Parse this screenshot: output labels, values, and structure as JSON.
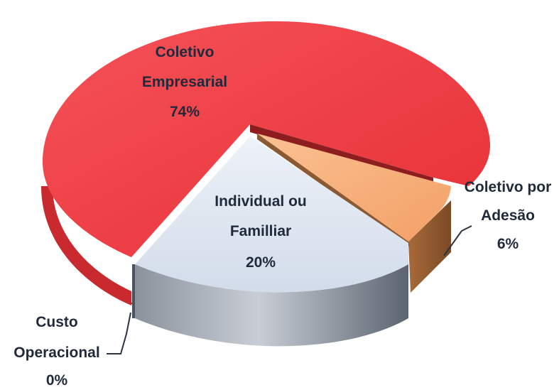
{
  "chart_data": {
    "type": "pie",
    "title": "",
    "slices": [
      {
        "label_lines": [
          "Coletivo",
          "Empresarial"
        ],
        "percent_label": "74%",
        "value": 74,
        "color": "#ef3b40"
      },
      {
        "label_lines": [
          "Coletivo por",
          "Adesão"
        ],
        "percent_label": "6%",
        "value": 6,
        "color": "#f7b07a"
      },
      {
        "label_lines": [
          "Individual ou",
          "Familliar"
        ],
        "percent_label": "20%",
        "value": 20,
        "color": "#dbe5f2"
      },
      {
        "label_lines": [
          "Custo",
          "Operacional"
        ],
        "percent_label": "0%",
        "value": 0,
        "color": "#7f7f7f"
      }
    ]
  }
}
